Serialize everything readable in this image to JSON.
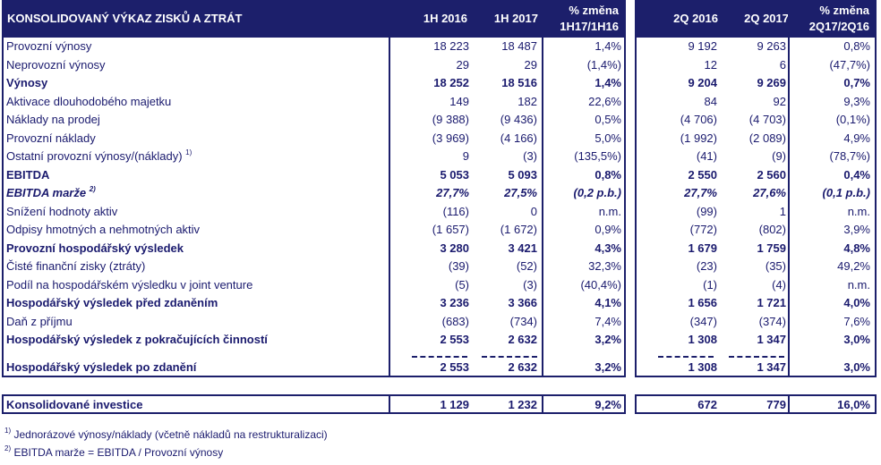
{
  "header": {
    "title": "KONSOLIDOVANÝ VÝKAZ ZISKŮ A ZTRÁT",
    "c1": "1H 2016",
    "c2": "1H 2017",
    "c3a": "% změna",
    "c3b": "1H17/1H16",
    "c4": "2Q 2016",
    "c5": "2Q 2017",
    "c6a": "% změna",
    "c6b": "2Q17/2Q16"
  },
  "rows": [
    {
      "label": "Provozní výnosy",
      "v": [
        "18 223",
        "18 487",
        "1,4%",
        "9 192",
        "9 263",
        "0,8%"
      ]
    },
    {
      "label": "Neprovozní výnosy",
      "v": [
        "29",
        "29",
        "(1,4%)",
        "12",
        "6",
        "(47,7%)"
      ]
    },
    {
      "label": "Výnosy",
      "v": [
        "18 252",
        "18 516",
        "1,4%",
        "9 204",
        "9 269",
        "0,7%"
      ]
    },
    {
      "label": "Aktivace dlouhodobého majetku",
      "v": [
        "149",
        "182",
        "22,6%",
        "84",
        "92",
        "9,3%"
      ]
    },
    {
      "label": "Náklady na prodej",
      "v": [
        "(9 388)",
        "(9 436)",
        "0,5%",
        "(4 706)",
        "(4 703)",
        "(0,1%)"
      ]
    },
    {
      "label": "Provozní náklady",
      "v": [
        "(3 969)",
        "(4 166)",
        "5,0%",
        "(1 992)",
        "(2 089)",
        "4,9%"
      ]
    },
    {
      "label": "Ostatní provozní výnosy/(náklady)",
      "sup": "1)",
      "v": [
        "9",
        "(3)",
        "(135,5%)",
        "(41)",
        "(9)",
        "(78,7%)"
      ]
    },
    {
      "label": "EBITDA",
      "v": [
        "5 053",
        "5 093",
        "0,8%",
        "2 550",
        "2 560",
        "0,4%"
      ]
    },
    {
      "label": "EBITDA marže",
      "sup": "2)",
      "v": [
        "27,7%",
        "27,5%",
        "(0,2 p.b.)",
        "27,7%",
        "27,6%",
        "(0,1 p.b.)"
      ]
    },
    {
      "label": "Snížení hodnoty aktiv",
      "v": [
        "(116)",
        "0",
        "n.m.",
        "(99)",
        "1",
        "n.m."
      ]
    },
    {
      "label": "Odpisy hmotných a nehmotných aktiv",
      "v": [
        "(1 657)",
        "(1 672)",
        "0,9%",
        "(772)",
        "(802)",
        "3,9%"
      ]
    },
    {
      "label": "Provozní hospodářský výsledek",
      "v": [
        "3 280",
        "3 421",
        "4,3%",
        "1 679",
        "1 759",
        "4,8%"
      ]
    },
    {
      "label": "Čisté finanční zisky (ztráty)",
      "v": [
        "(39)",
        "(52)",
        "32,3%",
        "(23)",
        "(35)",
        "49,2%"
      ]
    },
    {
      "label": "Podíl na hospodářském výsledku v joint venture",
      "v": [
        "(5)",
        "(3)",
        "(40,4%)",
        "(1)",
        "(4)",
        "n.m."
      ]
    },
    {
      "label": "Hospodářský výsledek před zdaněním",
      "v": [
        "3 236",
        "3 366",
        "4,1%",
        "1 656",
        "1 721",
        "4,0%"
      ]
    },
    {
      "label": "Daň z příjmu",
      "v": [
        "(683)",
        "(734)",
        "7,4%",
        "(347)",
        "(374)",
        "7,6%"
      ]
    },
    {
      "label": "Hospodářský výsledek z pokračujících činností",
      "v": [
        "2 553",
        "2 632",
        "3,2%",
        "1 308",
        "1 347",
        "3,0%"
      ]
    },
    {
      "label": "Hospodářský výsledek po zdanění",
      "v": [
        "2 553",
        "2 632",
        "3,2%",
        "1 308",
        "1 347",
        "3,0%"
      ]
    }
  ],
  "investice": {
    "label": "Konsolidované investice",
    "v": [
      "1 129",
      "1 232",
      "9,2%",
      "672",
      "779",
      "16,0%"
    ]
  },
  "footnotes": [
    {
      "mark": "1)",
      "text": "Jednorázové výnosy/náklady (včetně nákladů na restrukturalizaci)"
    },
    {
      "mark": "2)",
      "text": "EBITDA marže = EBITDA / Provozní výnosy"
    }
  ]
}
